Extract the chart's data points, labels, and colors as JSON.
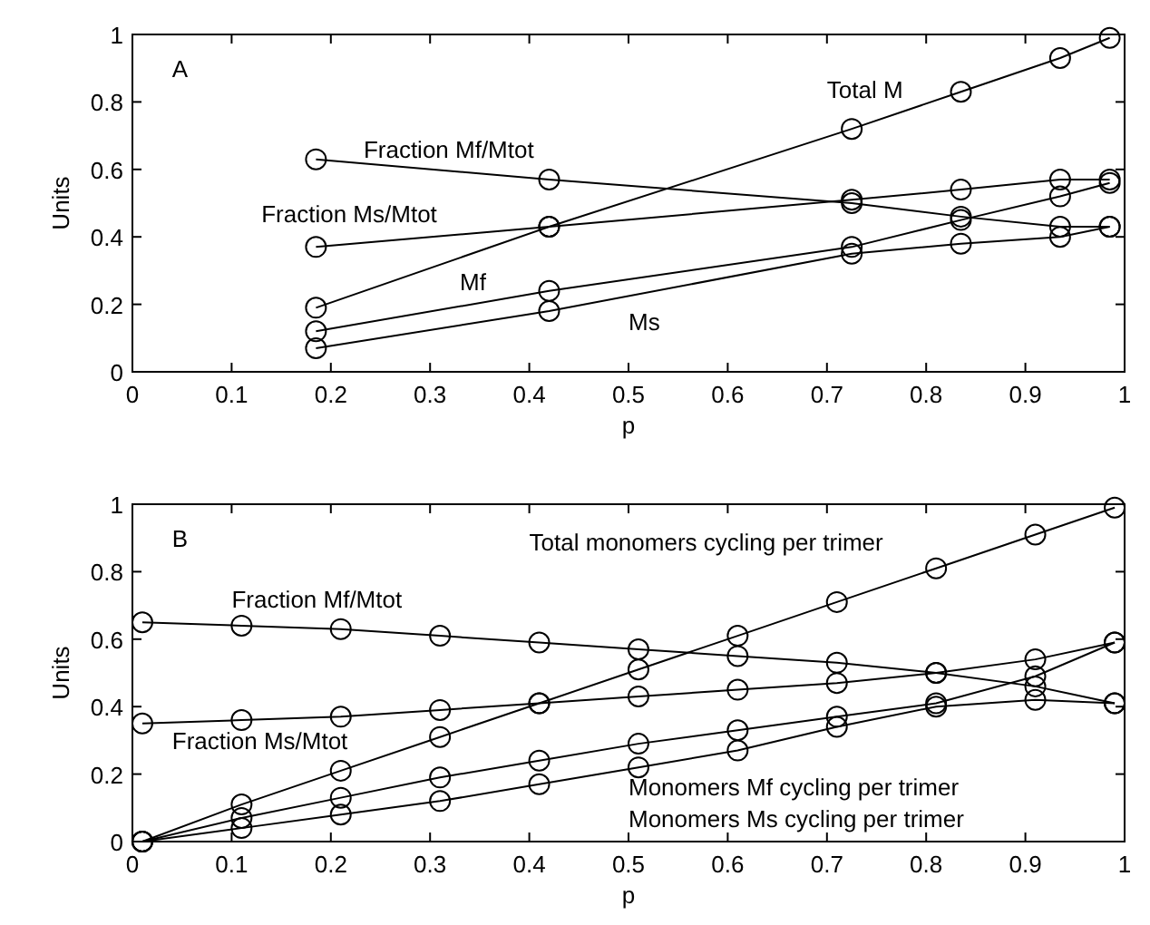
{
  "chart_data": [
    {
      "type": "line",
      "xlabel": "p",
      "ylabel": "Units",
      "xlim": [
        0,
        1
      ],
      "ylim": [
        0,
        1
      ],
      "xticks": [
        0,
        0.1,
        0.2,
        0.3,
        0.4,
        0.5,
        0.6,
        0.7,
        0.8,
        0.9,
        1
      ],
      "yticks": [
        0,
        0.2,
        0.4,
        0.6,
        0.8,
        1
      ],
      "marker": "circle",
      "x": [
        0.185,
        0.42,
        0.725,
        0.835,
        0.935,
        0.985
      ],
      "series": [
        {
          "color": "#000000",
          "values": [
            0.19,
            0.43,
            0.72,
            0.83,
            0.93,
            0.99
          ]
        },
        {
          "color": "#000000",
          "values": [
            0.63,
            0.57,
            0.5,
            0.46,
            0.43,
            0.43
          ]
        },
        {
          "color": "#000000",
          "values": [
            0.37,
            0.43,
            0.51,
            0.54,
            0.57,
            0.57
          ]
        },
        {
          "color": "#000000",
          "values": [
            0.12,
            0.24,
            0.37,
            0.45,
            0.52,
            0.56
          ]
        },
        {
          "color": "#000000",
          "values": [
            0.07,
            0.18,
            0.35,
            0.38,
            0.4,
            0.43
          ]
        }
      ],
      "annotations": [
        "A",
        "Total M",
        "Fraction Mf/Mtot",
        "Fraction Ms/Mtot",
        "Mf",
        "Ms"
      ]
    },
    {
      "type": "line",
      "xlabel": "p",
      "ylabel": "Units",
      "xlim": [
        0,
        1
      ],
      "ylim": [
        0,
        1
      ],
      "xticks": [
        0,
        0.1,
        0.2,
        0.3,
        0.4,
        0.5,
        0.6,
        0.7,
        0.8,
        0.9,
        1
      ],
      "yticks": [
        0,
        0.2,
        0.4,
        0.6,
        0.8,
        1
      ],
      "marker": "circle",
      "x": [
        0.01,
        0.11,
        0.21,
        0.31,
        0.41,
        0.51,
        0.61,
        0.71,
        0.81,
        0.91,
        0.99
      ],
      "series": [
        {
          "color": "#000000",
          "values": [
            0,
            0.11,
            0.21,
            0.31,
            0.41,
            0.51,
            0.61,
            0.71,
            0.81,
            0.91,
            0.99
          ]
        },
        {
          "color": "#000000",
          "values": [
            0.65,
            0.64,
            0.63,
            0.61,
            0.59,
            0.57,
            0.55,
            0.53,
            0.5,
            0.46,
            0.41
          ]
        },
        {
          "color": "#000000",
          "values": [
            0.35,
            0.36,
            0.37,
            0.39,
            0.41,
            0.43,
            0.45,
            0.47,
            0.5,
            0.54,
            0.59
          ]
        },
        {
          "color": "#000000",
          "values": [
            0,
            0.07,
            0.13,
            0.19,
            0.24,
            0.29,
            0.33,
            0.37,
            0.41,
            0.49,
            0.59
          ]
        },
        {
          "color": "#000000",
          "values": [
            0,
            0.04,
            0.08,
            0.12,
            0.17,
            0.22,
            0.27,
            0.34,
            0.4,
            0.42,
            0.41
          ]
        }
      ],
      "annotations": [
        "B",
        "Total monomers cycling per trimer",
        "Fraction Mf/Mtot",
        "Fraction Ms/Mtot",
        "Monomers Mf cycling per trimer",
        "Monomers Ms cycling per trimer"
      ]
    }
  ]
}
